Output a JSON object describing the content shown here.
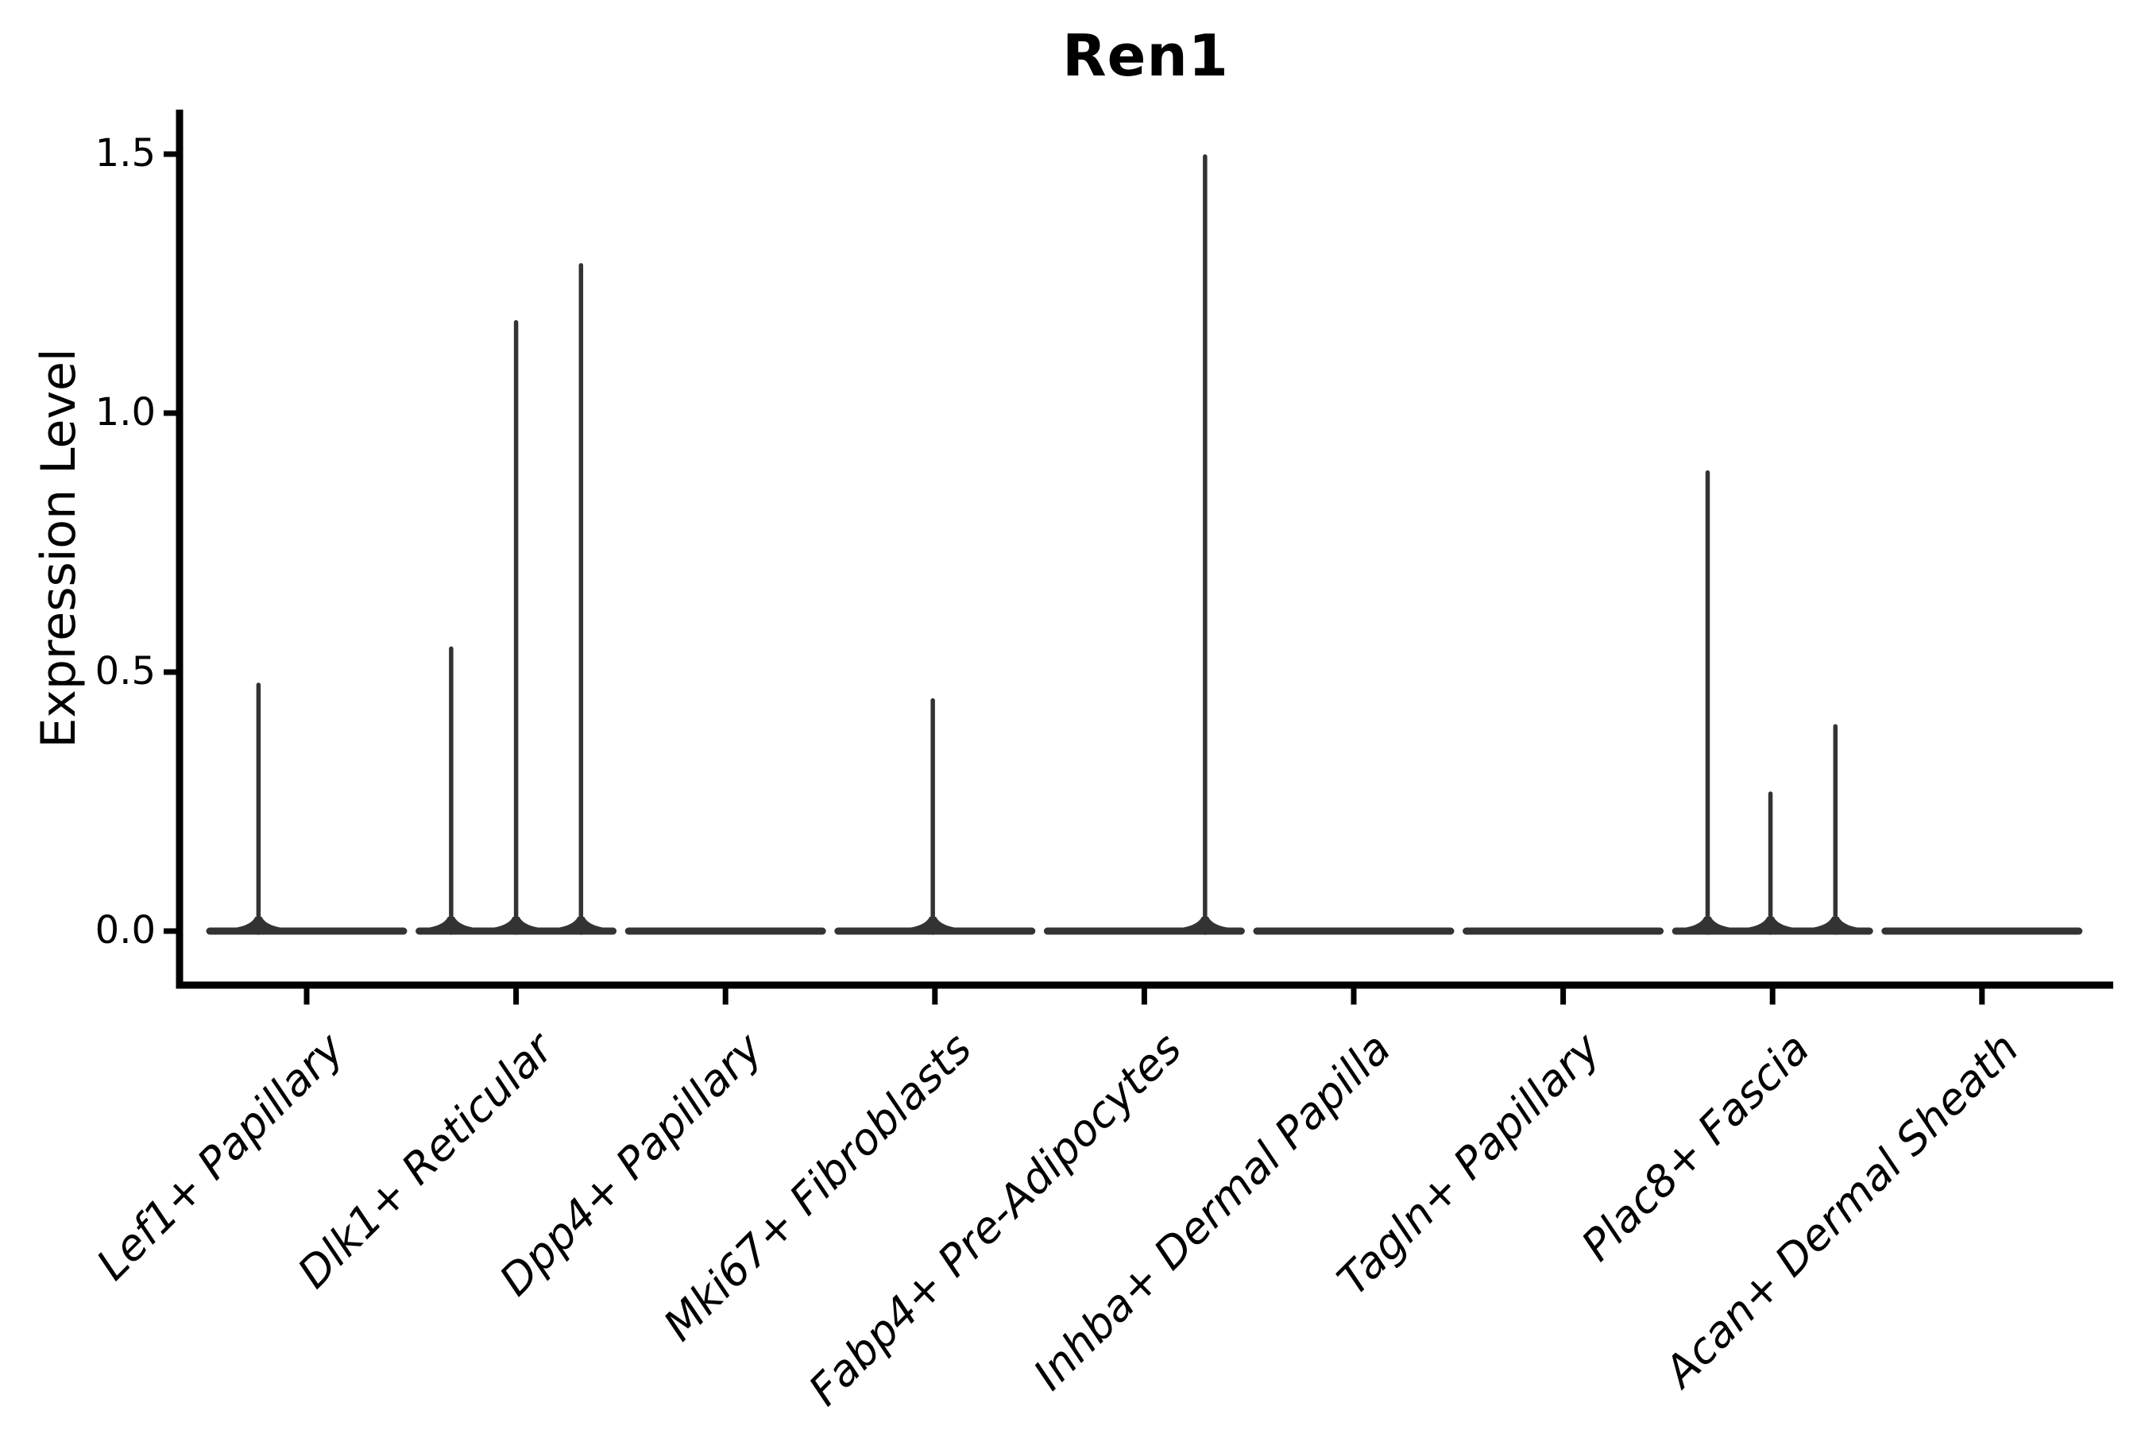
{
  "page": {
    "background": "#ffffff"
  },
  "chart_data": {
    "type": "violin",
    "title": "Ren1",
    "xlabel": "",
    "ylabel": "Expression Level",
    "ylim": [
      0,
      1.5
    ],
    "yticks": [
      0.0,
      0.5,
      1.0,
      1.5
    ],
    "ytick_labels": [
      "0.0",
      "0.5",
      "1.0",
      "1.5"
    ],
    "grid": false,
    "legend": "none",
    "categories": [
      "Lef1+ Papillary",
      "Dlk1+ Reticular",
      "Dpp4+ Papillary",
      "Mki67+ Fibroblasts",
      "Fabp4+ Pre-Adipocytes",
      "Inhba+ Dermal Papilla",
      "Tagln+ Papillary",
      "Plac8+ Fascia",
      "Acan+ Dermal Sheath"
    ],
    "violins": [
      {
        "category": "Lef1+ Papillary",
        "zero_body": true,
        "spikes": [
          {
            "offset": -0.23,
            "max_expression": 0.48
          }
        ]
      },
      {
        "category": "Dlk1+ Reticular",
        "zero_body": true,
        "spikes": [
          {
            "offset": -0.31,
            "max_expression": 0.55
          },
          {
            "offset": 0.0,
            "max_expression": 1.18
          },
          {
            "offset": 0.31,
            "max_expression": 1.29
          }
        ]
      },
      {
        "category": "Dpp4+ Papillary",
        "zero_body": true,
        "spikes": []
      },
      {
        "category": "Mki67+ Fibroblasts",
        "zero_body": true,
        "spikes": [
          {
            "offset": -0.01,
            "max_expression": 0.45
          }
        ]
      },
      {
        "category": "Fabp4+ Pre-Adipocytes",
        "zero_body": true,
        "spikes": [
          {
            "offset": 0.29,
            "max_expression": 1.5
          }
        ]
      },
      {
        "category": "Inhba+ Dermal Papilla",
        "zero_body": true,
        "spikes": []
      },
      {
        "category": "Tagln+ Papillary",
        "zero_body": true,
        "spikes": []
      },
      {
        "category": "Plac8+ Fascia",
        "zero_body": true,
        "spikes": [
          {
            "offset": -0.31,
            "max_expression": 0.89
          },
          {
            "offset": -0.01,
            "max_expression": 0.27
          },
          {
            "offset": 0.3,
            "max_expression": 0.4
          }
        ]
      },
      {
        "category": "Acan+ Dermal Sheath",
        "zero_body": true,
        "spikes": []
      }
    ],
    "colors": {
      "violin_stroke": "#333333",
      "axis": "#000000",
      "text": "#000000"
    }
  }
}
